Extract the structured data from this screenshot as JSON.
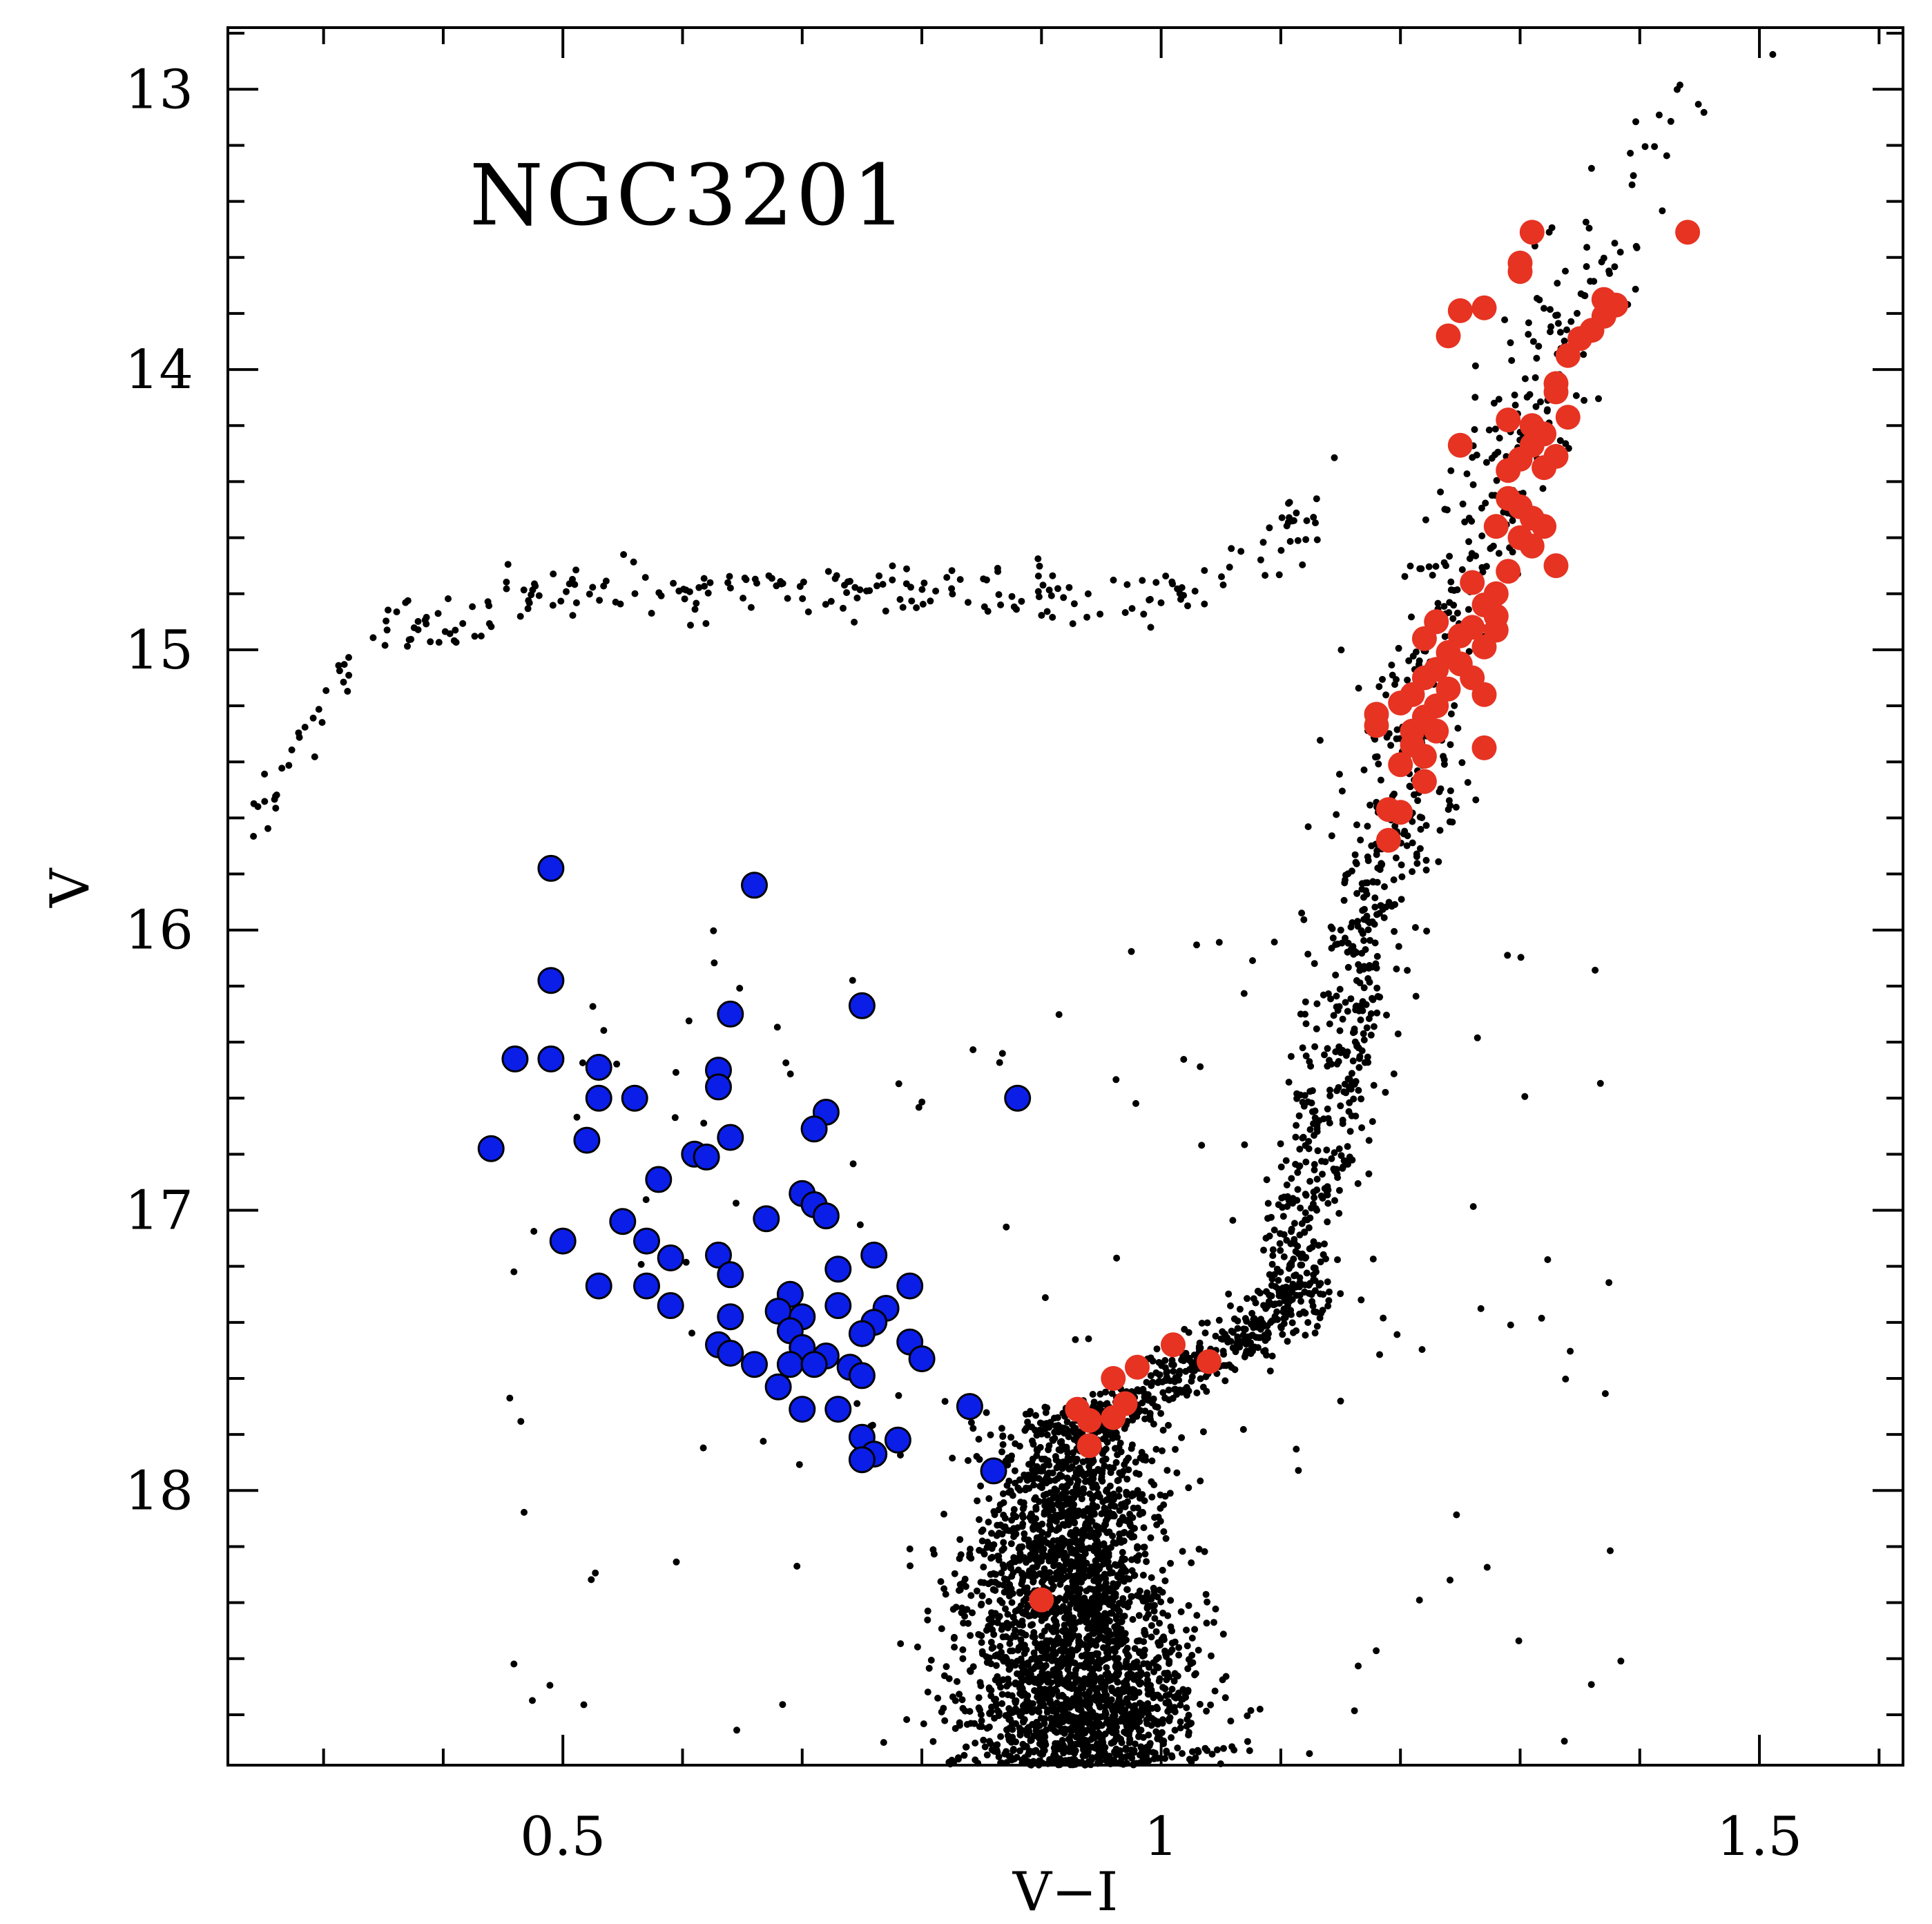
{
  "chart_data": {
    "type": "scatter",
    "title": "NGC3201",
    "xlabel": "V−I",
    "ylabel": "V",
    "xlim": [
      0.22,
      1.62
    ],
    "ylim": [
      18.98,
      12.78
    ],
    "y_inverted": true,
    "x_ticks": [
      0.5,
      1,
      1.5
    ],
    "x_tick_labels": [
      "0.5",
      "1",
      "1.5"
    ],
    "y_ticks": [
      13,
      14,
      15,
      16,
      17,
      18
    ],
    "y_tick_labels": [
      "13",
      "14",
      "15",
      "16",
      "17",
      "18"
    ],
    "grid": false,
    "legend": "none",
    "colors": {
      "field_stars": "#000000",
      "blue_stragglers": "#0a1ee8",
      "red_members": "#e63322"
    },
    "series": [
      {
        "name": "blue_stragglers",
        "marker": "circle-outlined",
        "points": [
          [
            0.49,
            15.78
          ],
          [
            0.66,
            15.84
          ],
          [
            0.49,
            16.18
          ],
          [
            0.75,
            16.27
          ],
          [
            0.64,
            16.3
          ],
          [
            0.46,
            16.46
          ],
          [
            0.49,
            16.46
          ],
          [
            0.53,
            16.49
          ],
          [
            0.63,
            16.5
          ],
          [
            0.63,
            16.56
          ],
          [
            0.53,
            16.6
          ],
          [
            0.56,
            16.6
          ],
          [
            0.88,
            16.6
          ],
          [
            0.72,
            16.65
          ],
          [
            0.71,
            16.71
          ],
          [
            0.64,
            16.74
          ],
          [
            0.52,
            16.75
          ],
          [
            0.44,
            16.78
          ],
          [
            0.61,
            16.8
          ],
          [
            0.62,
            16.81
          ],
          [
            0.58,
            16.89
          ],
          [
            0.7,
            16.94
          ],
          [
            0.71,
            16.98
          ],
          [
            0.72,
            17.02
          ],
          [
            0.67,
            17.03
          ],
          [
            0.55,
            17.04
          ],
          [
            0.57,
            17.11
          ],
          [
            0.5,
            17.11
          ],
          [
            0.63,
            17.16
          ],
          [
            0.76,
            17.16
          ],
          [
            0.59,
            17.17
          ],
          [
            0.64,
            17.23
          ],
          [
            0.73,
            17.21
          ],
          [
            0.53,
            17.27
          ],
          [
            0.57,
            17.27
          ],
          [
            0.79,
            17.27
          ],
          [
            0.69,
            17.3
          ],
          [
            0.59,
            17.34
          ],
          [
            0.73,
            17.34
          ],
          [
            0.77,
            17.35
          ],
          [
            0.68,
            17.36
          ],
          [
            0.64,
            17.38
          ],
          [
            0.7,
            17.38
          ],
          [
            0.76,
            17.4
          ],
          [
            0.69,
            17.43
          ],
          [
            0.75,
            17.44
          ],
          [
            0.63,
            17.48
          ],
          [
            0.7,
            17.49
          ],
          [
            0.79,
            17.47
          ],
          [
            0.64,
            17.51
          ],
          [
            0.72,
            17.52
          ],
          [
            0.66,
            17.55
          ],
          [
            0.69,
            17.55
          ],
          [
            0.71,
            17.55
          ],
          [
            0.8,
            17.53
          ],
          [
            0.74,
            17.56
          ],
          [
            0.75,
            17.59
          ],
          [
            0.68,
            17.63
          ],
          [
            0.7,
            17.71
          ],
          [
            0.73,
            17.71
          ],
          [
            0.84,
            17.7
          ],
          [
            0.75,
            17.81
          ],
          [
            0.78,
            17.82
          ],
          [
            0.76,
            17.87
          ],
          [
            0.75,
            17.89
          ],
          [
            0.86,
            17.93
          ]
        ]
      },
      {
        "name": "red_members",
        "marker": "circle",
        "points": [
          [
            1.31,
            13.51
          ],
          [
            1.44,
            13.51
          ],
          [
            1.3,
            13.62
          ],
          [
            1.3,
            13.65
          ],
          [
            1.27,
            13.78
          ],
          [
            1.25,
            13.79
          ],
          [
            1.37,
            13.75
          ],
          [
            1.38,
            13.77
          ],
          [
            1.37,
            13.81
          ],
          [
            1.36,
            13.86
          ],
          [
            1.35,
            13.89
          ],
          [
            1.24,
            13.88
          ],
          [
            1.34,
            13.95
          ],
          [
            1.33,
            14.05
          ],
          [
            1.33,
            14.08
          ],
          [
            1.29,
            14.18
          ],
          [
            1.31,
            14.2
          ],
          [
            1.34,
            14.17
          ],
          [
            1.32,
            14.23
          ],
          [
            1.31,
            14.27
          ],
          [
            1.25,
            14.27
          ],
          [
            1.33,
            14.31
          ],
          [
            1.32,
            14.35
          ],
          [
            1.29,
            14.36
          ],
          [
            1.3,
            14.32
          ],
          [
            1.29,
            14.46
          ],
          [
            1.3,
            14.49
          ],
          [
            1.31,
            14.53
          ],
          [
            1.32,
            14.56
          ],
          [
            1.28,
            14.56
          ],
          [
            1.3,
            14.6
          ],
          [
            1.31,
            14.63
          ],
          [
            1.33,
            14.7
          ],
          [
            1.29,
            14.72
          ],
          [
            1.26,
            14.76
          ],
          [
            1.28,
            14.8
          ],
          [
            1.27,
            14.84
          ],
          [
            1.28,
            14.88
          ],
          [
            1.26,
            14.92
          ],
          [
            1.23,
            14.9
          ],
          [
            1.25,
            14.95
          ],
          [
            1.28,
            14.93
          ],
          [
            1.22,
            14.96
          ],
          [
            1.27,
            14.99
          ],
          [
            1.24,
            15.01
          ],
          [
            1.25,
            15.05
          ],
          [
            1.23,
            15.07
          ],
          [
            1.26,
            15.1
          ],
          [
            1.22,
            15.1
          ],
          [
            1.24,
            15.14
          ],
          [
            1.27,
            15.16
          ],
          [
            1.21,
            15.16
          ],
          [
            1.2,
            15.19
          ],
          [
            1.23,
            15.2
          ],
          [
            1.22,
            15.24
          ],
          [
            1.18,
            15.23
          ],
          [
            1.18,
            15.27
          ],
          [
            1.21,
            15.29
          ],
          [
            1.23,
            15.29
          ],
          [
            1.21,
            15.34
          ],
          [
            1.27,
            15.35
          ],
          [
            1.22,
            15.38
          ],
          [
            1.2,
            15.41
          ],
          [
            1.22,
            15.47
          ],
          [
            1.19,
            15.57
          ],
          [
            1.2,
            15.58
          ],
          [
            1.19,
            15.68
          ],
          [
            0.93,
            17.71
          ],
          [
            0.94,
            17.75
          ],
          [
            0.96,
            17.6
          ],
          [
            0.98,
            17.56
          ],
          [
            1.01,
            17.48
          ],
          [
            1.04,
            17.54
          ],
          [
            0.97,
            17.69
          ],
          [
            0.96,
            17.74
          ],
          [
            0.94,
            17.84
          ],
          [
            0.9,
            18.39
          ]
        ]
      }
    ],
    "field_star_sequences": [
      {
        "name": "main_sequence_turnoff",
        "v_range": [
          17.7,
          18.98
        ],
        "vi_center": 0.93,
        "vi_spread": 0.035,
        "count": 2600
      },
      {
        "name": "subgiant_branch",
        "v_range": [
          17.3,
          17.8
        ],
        "vi_range": [
          0.96,
          1.1
        ],
        "count": 420
      },
      {
        "name": "red_giant_branch",
        "v_range": [
          12.8,
          17.3
        ],
        "count": 780
      },
      {
        "name": "horizontal_branch",
        "v_range": [
          14.6,
          15.7
        ],
        "vi_range": [
          0.24,
          1.15
        ],
        "count": 260
      },
      {
        "name": "scattered_field",
        "count": 140
      }
    ]
  }
}
